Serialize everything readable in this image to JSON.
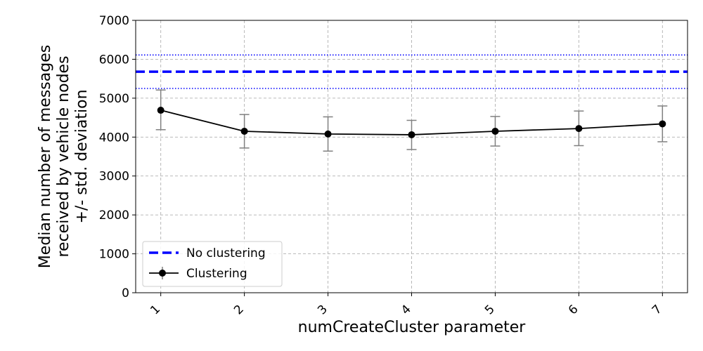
{
  "chart_data": {
    "type": "line",
    "x": [
      1,
      2,
      3,
      4,
      5,
      6,
      7
    ],
    "xticks": [
      "1",
      "2",
      "3",
      "4",
      "5",
      "6",
      "7"
    ],
    "xlim": [
      0.7,
      7.3
    ],
    "ylim": [
      0,
      7000
    ],
    "yticks": [
      0,
      1000,
      2000,
      3000,
      4000,
      5000,
      6000,
      7000
    ],
    "xlabel": "numCreateCluster parameter",
    "ylabel": [
      "Median number of messages",
      "received by vehicle nodes",
      "+/- std. deviation"
    ],
    "grid": true,
    "legend_position": "lower-left",
    "series": [
      {
        "name": "Clustering",
        "style": "line-marker-errorbar",
        "color": "#000000",
        "errorbar_color": "#808080",
        "values": [
          4690,
          4150,
          4080,
          4060,
          4150,
          4220,
          4340
        ],
        "error_low": [
          4190,
          3720,
          3640,
          3680,
          3770,
          3780,
          3880
        ],
        "error_high": [
          5210,
          4580,
          4520,
          4430,
          4530,
          4670,
          4800
        ]
      },
      {
        "name": "No clustering",
        "style": "dashed-hline",
        "color": "#0000ff",
        "value": 5680,
        "std_band": [
          5250,
          6110
        ],
        "std_band_style": "dotted"
      }
    ]
  }
}
